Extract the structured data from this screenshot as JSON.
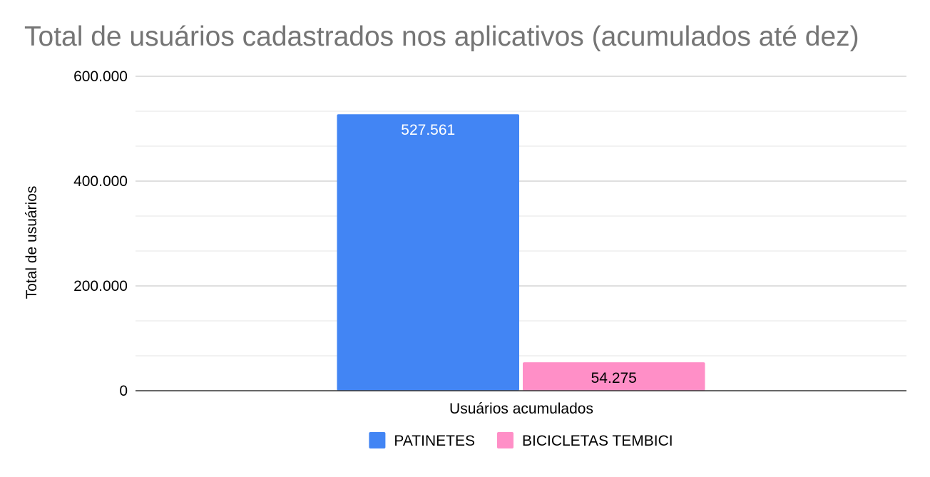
{
  "chart_data": {
    "type": "bar",
    "title": "Total de usuários cadastrados nos aplicativos (acumulados até dez)",
    "xlabel": "Usuários acumulados",
    "ylabel": "Total de usuários",
    "categories": [
      "Usuários acumulados"
    ],
    "series": [
      {
        "name": "PATINETES",
        "values": [
          527561
        ],
        "value_labels": [
          "527.561"
        ],
        "color": "#4285f4",
        "label_color": "#ffffff"
      },
      {
        "name": "BICICLETAS TEMBICI",
        "values": [
          54275
        ],
        "value_labels": [
          "54.275"
        ],
        "color": "#ff8fc7",
        "label_color": "#000000"
      }
    ],
    "ylim": [
      0,
      600000
    ],
    "yticks": [
      {
        "value": 0,
        "label": "0"
      },
      {
        "value": 200000,
        "label": "200.000"
      },
      {
        "value": 400000,
        "label": "400.000"
      },
      {
        "value": 600000,
        "label": "600.000"
      }
    ],
    "minor_gridlines": [
      66666.67,
      133333.33,
      266666.67,
      333333.33,
      466666.67,
      533333.33
    ],
    "grid": true,
    "legend_position": "bottom",
    "colors": {
      "title": "#757575",
      "text": "#000000",
      "grid_major": "#cccccc",
      "grid_minor": "#e6e6e6",
      "axis": "#333333"
    }
  }
}
